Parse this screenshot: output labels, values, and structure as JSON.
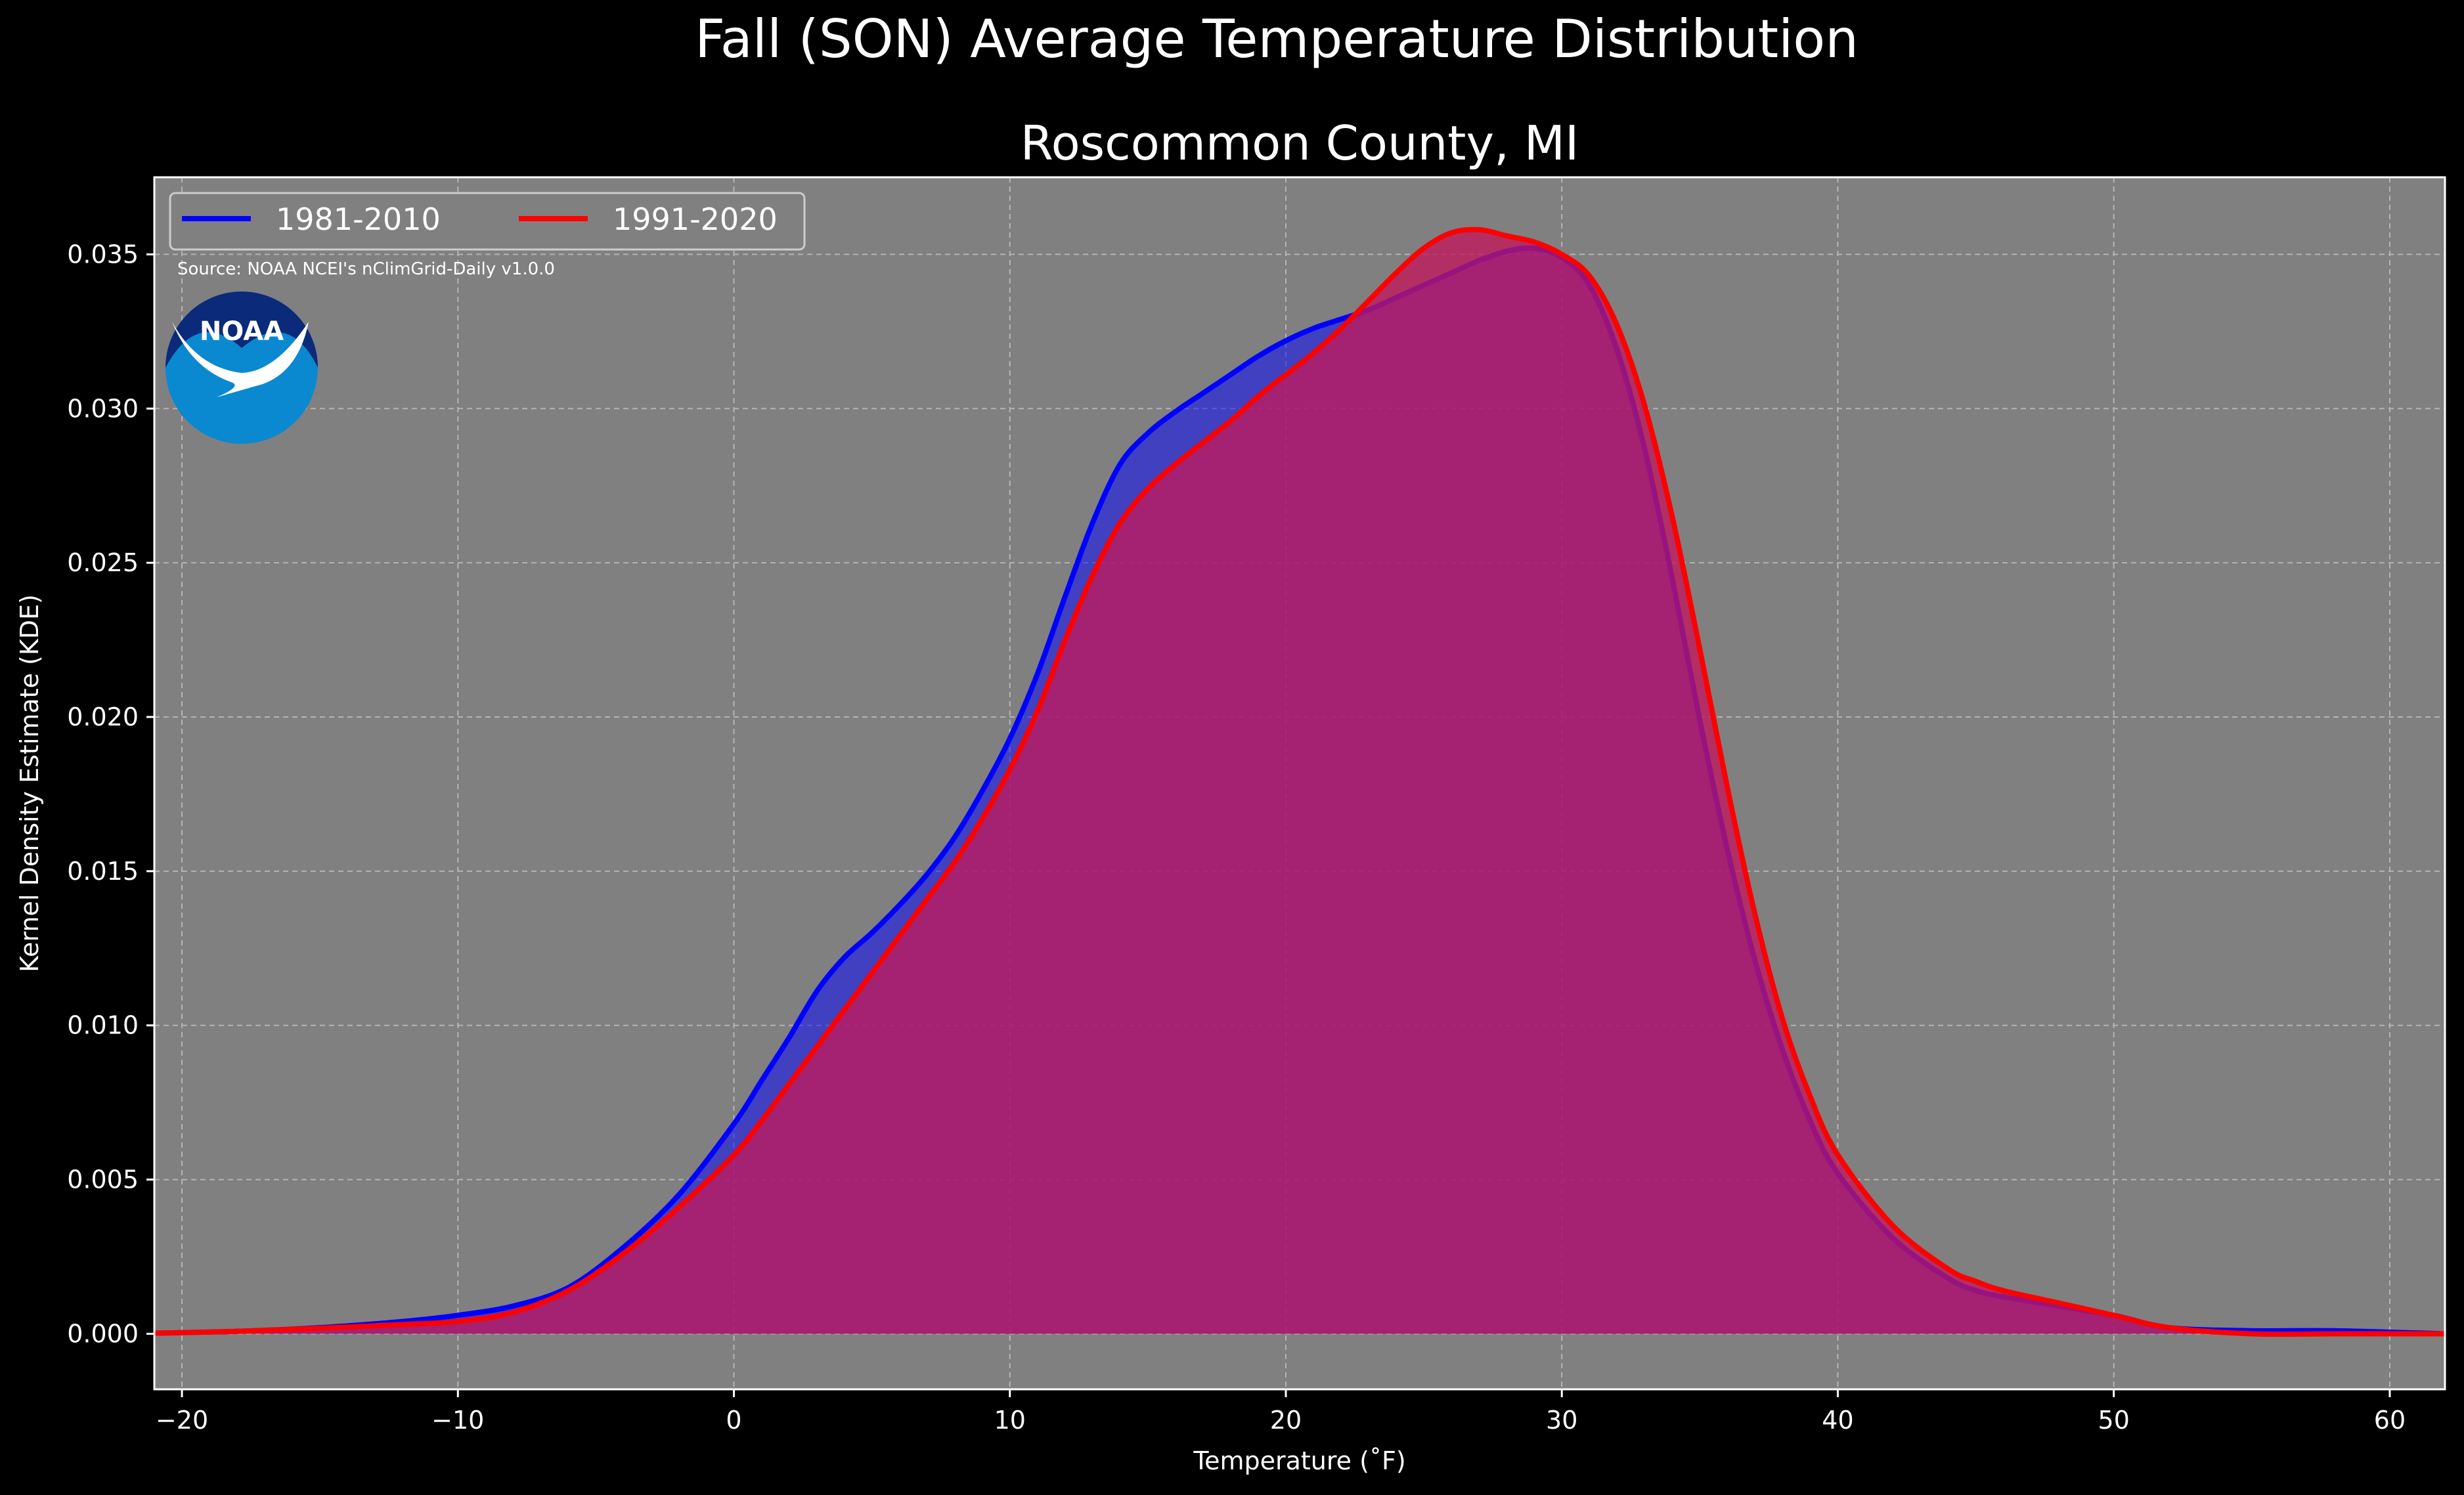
{
  "chart_data": {
    "type": "area",
    "title": "Fall (SON) Average Temperature Distribution",
    "subtitle": "Roscommon County, MI",
    "xlabel": "Temperature (˚F)",
    "ylabel": "Kernel Density Estimate (KDE)",
    "xlim": [
      -21,
      62
    ],
    "ylim": [
      -0.0018,
      0.0375
    ],
    "xticks": [
      -20,
      -10,
      0,
      10,
      20,
      30,
      40,
      50,
      60
    ],
    "xtick_labels": [
      "−20",
      "−10",
      "0",
      "10",
      "20",
      "30",
      "40",
      "50",
      "60"
    ],
    "yticks": [
      0,
      0.005,
      0.01,
      0.015,
      0.02,
      0.025,
      0.03,
      0.035
    ],
    "ytick_labels": [
      "0.000",
      "0.005",
      "0.010",
      "0.015",
      "0.020",
      "0.025",
      "0.030",
      "0.035"
    ],
    "grid": true,
    "legend_position": "top-left",
    "background_color": "#808080",
    "annotation": "Source: NOAA NCEI's nClimGrid-Daily v1.0.0",
    "logo_text": "NOAA",
    "series": [
      {
        "name": "1981-2010",
        "color": "#0000ff",
        "fill_color": "#0000ff",
        "fill_opacity": 0.5,
        "x": [
          -21,
          -18,
          -15,
          -12,
          -10,
          -8,
          -6,
          -4,
          -2,
          0,
          1,
          2,
          3,
          4,
          5,
          6,
          7,
          8,
          9,
          10,
          11,
          12,
          13,
          14,
          15,
          16,
          17,
          18,
          19,
          20,
          21,
          22,
          23,
          24,
          25,
          26,
          27,
          28,
          29,
          30,
          31,
          32,
          33,
          34,
          35,
          36,
          37,
          38,
          39,
          40,
          42,
          44,
          45,
          46,
          48,
          50,
          52,
          55,
          58,
          62
        ],
        "y": [
          2e-05,
          8e-05,
          0.0002,
          0.0004,
          0.0006,
          0.0009,
          0.0015,
          0.0028,
          0.0045,
          0.0068,
          0.0082,
          0.0096,
          0.0111,
          0.0122,
          0.013,
          0.0139,
          0.0149,
          0.0161,
          0.0176,
          0.0193,
          0.0214,
          0.0239,
          0.0263,
          0.0282,
          0.0292,
          0.0299,
          0.0305,
          0.0311,
          0.0317,
          0.0322,
          0.0326,
          0.0329,
          0.0332,
          0.0336,
          0.034,
          0.0344,
          0.0348,
          0.0351,
          0.0352,
          0.0349,
          0.034,
          0.0319,
          0.0287,
          0.0245,
          0.0199,
          0.0157,
          0.0121,
          0.0092,
          0.0069,
          0.0052,
          0.0031,
          0.0018,
          0.0014,
          0.0012,
          0.0009,
          0.0006,
          0.0002,
          0.0001,
          0.0001,
          0.0
        ]
      },
      {
        "name": "1991-2020",
        "color": "#ff0000",
        "fill_color": "#c2185b",
        "fill_opacity": 0.78,
        "x": [
          -21,
          -18,
          -15,
          -12,
          -10,
          -8,
          -6,
          -4,
          -2,
          0,
          1,
          2,
          3,
          4,
          5,
          6,
          7,
          8,
          9,
          10,
          11,
          12,
          13,
          14,
          15,
          16,
          17,
          18,
          19,
          20,
          21,
          22,
          23,
          24,
          25,
          26,
          27,
          28,
          29,
          30,
          31,
          32,
          33,
          34,
          35,
          36,
          37,
          38,
          39,
          40,
          42,
          44,
          45,
          46,
          48,
          50,
          52,
          55,
          58,
          62
        ],
        "y": [
          2e-05,
          8e-05,
          0.00018,
          0.0003,
          0.0004,
          0.0007,
          0.0014,
          0.0026,
          0.0041,
          0.0058,
          0.0069,
          0.0081,
          0.0093,
          0.0105,
          0.0117,
          0.0129,
          0.0141,
          0.0153,
          0.0167,
          0.0183,
          0.0202,
          0.0225,
          0.0246,
          0.0263,
          0.0274,
          0.0282,
          0.0289,
          0.0296,
          0.0304,
          0.0311,
          0.0318,
          0.0326,
          0.0335,
          0.0344,
          0.0352,
          0.0357,
          0.0358,
          0.0356,
          0.0354,
          0.035,
          0.0343,
          0.0327,
          0.0301,
          0.0265,
          0.0222,
          0.0177,
          0.0136,
          0.0102,
          0.0077,
          0.0058,
          0.0035,
          0.0021,
          0.0017,
          0.0014,
          0.001,
          0.0006,
          0.0002,
          0.0,
          0.0,
          0.0
        ]
      }
    ]
  }
}
